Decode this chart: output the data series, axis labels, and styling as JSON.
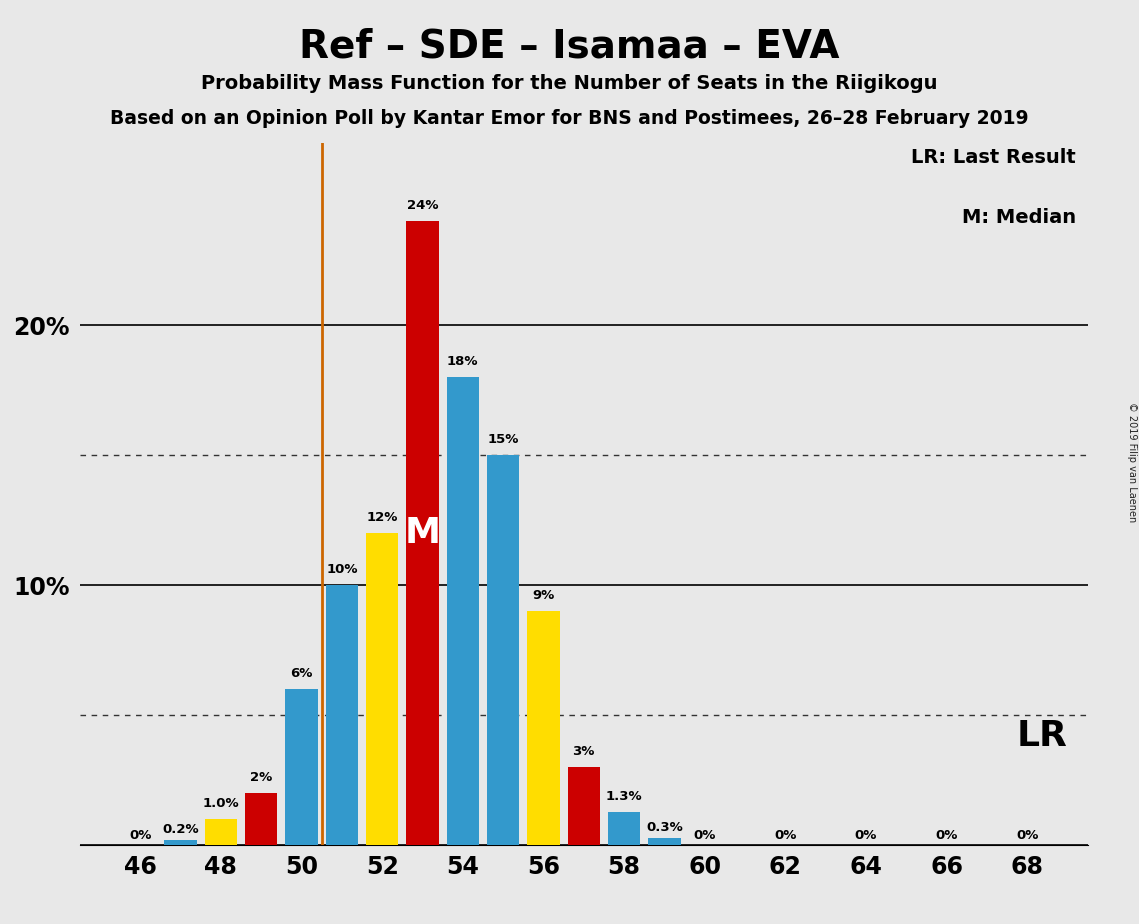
{
  "title": "Ref – SDE – Isamaa – EVA",
  "subtitle1": "Probability Mass Function for the Number of Seats in the Riigikogu",
  "subtitle2": "Based on an Opinion Poll by Kantar Emor for BNS and Postimees, 26–28 February 2019",
  "copyright": "© 2019 Filip van Laenen",
  "background_color": "#E8E8E8",
  "blue_color": "#3399CC",
  "red_color": "#CC0000",
  "yellow_color": "#FFDD00",
  "lr_line_color": "#CC6600",
  "lr_line_x": 50.5,
  "median_seat": 53,
  "bars": [
    {
      "x": 46,
      "v": 0.0,
      "c": "blue"
    },
    {
      "x": 47,
      "v": 0.2,
      "c": "blue"
    },
    {
      "x": 48,
      "v": 1.0,
      "c": "yellow"
    },
    {
      "x": 49,
      "v": 2.0,
      "c": "red"
    },
    {
      "x": 50,
      "v": 6.0,
      "c": "blue"
    },
    {
      "x": 51,
      "v": 10.0,
      "c": "blue"
    },
    {
      "x": 52,
      "v": 12.0,
      "c": "yellow"
    },
    {
      "x": 53,
      "v": 24.0,
      "c": "red"
    },
    {
      "x": 54,
      "v": 18.0,
      "c": "blue"
    },
    {
      "x": 55,
      "v": 15.0,
      "c": "blue"
    },
    {
      "x": 56,
      "v": 9.0,
      "c": "yellow"
    },
    {
      "x": 57,
      "v": 3.0,
      "c": "red"
    },
    {
      "x": 58,
      "v": 1.3,
      "c": "blue"
    },
    {
      "x": 59,
      "v": 0.3,
      "c": "blue"
    },
    {
      "x": 60,
      "v": 0.0,
      "c": "blue"
    },
    {
      "x": 62,
      "v": 0.0,
      "c": "blue"
    },
    {
      "x": 64,
      "v": 0.0,
      "c": "blue"
    },
    {
      "x": 66,
      "v": 0.0,
      "c": "blue"
    },
    {
      "x": 68,
      "v": 0.0,
      "c": "blue"
    }
  ],
  "bar_labels": [
    {
      "x": 46,
      "v": 0.0,
      "c": "blue",
      "label": "0%"
    },
    {
      "x": 47,
      "v": 0.2,
      "c": "blue",
      "label": "0.2%"
    },
    {
      "x": 48,
      "v": 1.0,
      "c": "yellow",
      "label": "1.0%"
    },
    {
      "x": 49,
      "v": 2.0,
      "c": "red",
      "label": "2%"
    },
    {
      "x": 50,
      "v": 6.0,
      "c": "blue",
      "label": "6%"
    },
    {
      "x": 51,
      "v": 10.0,
      "c": "blue",
      "label": "10%"
    },
    {
      "x": 52,
      "v": 12.0,
      "c": "yellow",
      "label": "12%"
    },
    {
      "x": 53,
      "v": 24.0,
      "c": "red",
      "label": "24%"
    },
    {
      "x": 54,
      "v": 18.0,
      "c": "blue",
      "label": "18%"
    },
    {
      "x": 55,
      "v": 15.0,
      "c": "blue",
      "label": "15%"
    },
    {
      "x": 56,
      "v": 9.0,
      "c": "yellow",
      "label": "9%"
    },
    {
      "x": 57,
      "v": 3.0,
      "c": "red",
      "label": "3%"
    },
    {
      "x": 58,
      "v": 1.3,
      "c": "blue",
      "label": "1.3%"
    },
    {
      "x": 59,
      "v": 0.3,
      "c": "blue",
      "label": "0.3%"
    },
    {
      "x": 60,
      "v": 0.0,
      "c": "blue",
      "label": "0%"
    },
    {
      "x": 62,
      "v": 0.0,
      "c": "blue",
      "label": "0%"
    },
    {
      "x": 64,
      "v": 0.0,
      "c": "blue",
      "label": "0%"
    },
    {
      "x": 66,
      "v": 0.0,
      "c": "blue",
      "label": "0%"
    },
    {
      "x": 68,
      "v": 0.0,
      "c": "blue",
      "label": "0%"
    }
  ],
  "xticks": [
    46,
    48,
    50,
    52,
    54,
    56,
    58,
    60,
    62,
    64,
    66,
    68
  ],
  "xlim": [
    44.5,
    69.5
  ],
  "ylim": [
    0,
    27
  ],
  "solid_gridline_y": [
    0,
    10,
    20
  ],
  "dotted_gridline_y": [
    5,
    15
  ],
  "bar_width": 0.8,
  "legend_lr": "LR: Last Result",
  "legend_m": "M: Median",
  "lr_label": "LR",
  "median_label": "M",
  "median_label_color": "#FFFFFF"
}
